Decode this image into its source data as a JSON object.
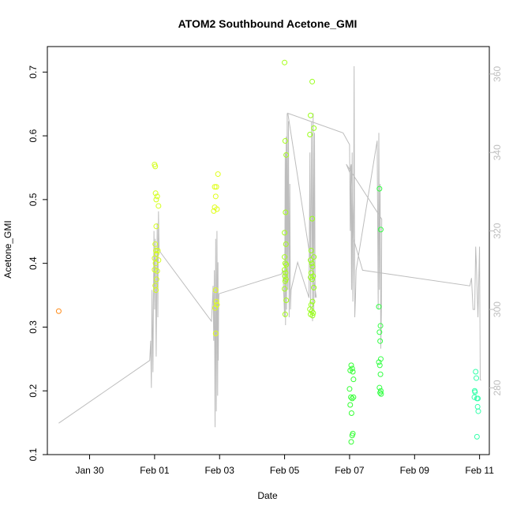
{
  "chart_data": {
    "type": "scatter",
    "title": "ATOM2 Southbound Acetone_GMI",
    "xlabel": "Date",
    "ylabel": "Acetone_GMI",
    "x_axis": {
      "range_days_from_jan29": [
        -0.3,
        13.3
      ],
      "ticks": [
        {
          "label": "Jan 30",
          "day": 1
        },
        {
          "label": "Feb 01",
          "day": 3
        },
        {
          "label": "Feb 03",
          "day": 5
        },
        {
          "label": "Feb 05",
          "day": 7
        },
        {
          "label": "Feb 07",
          "day": 9
        },
        {
          "label": "Feb 09",
          "day": 11
        },
        {
          "label": "Feb 11",
          "day": 13
        }
      ]
    },
    "ylim": [
      0.1,
      0.74
    ],
    "yticks": [
      "0.1",
      "0.2",
      "0.3",
      "0.4",
      "0.5",
      "0.6",
      "0.7"
    ],
    "y2lim": [
      263,
      367
    ],
    "y2ticks": [
      "280",
      "300",
      "320",
      "340",
      "360"
    ],
    "grid": false,
    "secondary_color": "#bdbdbd",
    "series": [
      {
        "marker": "open-circle",
        "points": [
          {
            "x": 0.05,
            "y": 0.325,
            "color": "#ff8c1a"
          },
          {
            "x": 3.0,
            "y": 0.555,
            "color": "#d4ff1a"
          },
          {
            "x": 3.02,
            "y": 0.552,
            "color": "#d4ff1a"
          },
          {
            "x": 3.03,
            "y": 0.51,
            "color": "#d4ff1a"
          },
          {
            "x": 3.05,
            "y": 0.5,
            "color": "#d4ff1a"
          },
          {
            "x": 3.08,
            "y": 0.505,
            "color": "#d4ff1a"
          },
          {
            "x": 3.12,
            "y": 0.49,
            "color": "#d4ff1a"
          },
          {
            "x": 3.05,
            "y": 0.458,
            "color": "#d4ff1a"
          },
          {
            "x": 3.02,
            "y": 0.43,
            "color": "#d4ff1a"
          },
          {
            "x": 3.04,
            "y": 0.42,
            "color": "#d4ff1a"
          },
          {
            "x": 3.1,
            "y": 0.42,
            "color": "#d4ff1a"
          },
          {
            "x": 3.06,
            "y": 0.415,
            "color": "#d4ff1a"
          },
          {
            "x": 3.0,
            "y": 0.408,
            "color": "#d4ff1a"
          },
          {
            "x": 3.12,
            "y": 0.405,
            "color": "#d4ff1a"
          },
          {
            "x": 3.03,
            "y": 0.4,
            "color": "#d4ff1a"
          },
          {
            "x": 3.0,
            "y": 0.39,
            "color": "#d4ff1a"
          },
          {
            "x": 3.08,
            "y": 0.388,
            "color": "#d4ff1a"
          },
          {
            "x": 3.06,
            "y": 0.375,
            "color": "#d4ff1a"
          },
          {
            "x": 3.02,
            "y": 0.365,
            "color": "#d4ff1a"
          },
          {
            "x": 3.04,
            "y": 0.358,
            "color": "#d4ff1a"
          },
          {
            "x": 4.85,
            "y": 0.52,
            "color": "#e0ff1a"
          },
          {
            "x": 4.9,
            "y": 0.52,
            "color": "#e0ff1a"
          },
          {
            "x": 4.95,
            "y": 0.54,
            "color": "#e0ff1a"
          },
          {
            "x": 4.88,
            "y": 0.505,
            "color": "#e0ff1a"
          },
          {
            "x": 4.85,
            "y": 0.488,
            "color": "#e0ff1a"
          },
          {
            "x": 4.92,
            "y": 0.485,
            "color": "#e0ff1a"
          },
          {
            "x": 4.82,
            "y": 0.482,
            "color": "#e0ff1a"
          },
          {
            "x": 4.88,
            "y": 0.358,
            "color": "#e0ff1a"
          },
          {
            "x": 4.9,
            "y": 0.34,
            "color": "#e0ff1a"
          },
          {
            "x": 4.92,
            "y": 0.335,
            "color": "#e0ff1a"
          },
          {
            "x": 4.86,
            "y": 0.33,
            "color": "#e0ff1a"
          },
          {
            "x": 4.88,
            "y": 0.29,
            "color": "#e0ff1a"
          },
          {
            "x": 7.0,
            "y": 0.715,
            "color": "#a6ff1a"
          },
          {
            "x": 7.02,
            "y": 0.592,
            "color": "#a6ff1a"
          },
          {
            "x": 7.05,
            "y": 0.57,
            "color": "#a6ff1a"
          },
          {
            "x": 7.0,
            "y": 0.448,
            "color": "#a6ff1a"
          },
          {
            "x": 7.03,
            "y": 0.48,
            "color": "#a6ff1a"
          },
          {
            "x": 7.04,
            "y": 0.43,
            "color": "#a6ff1a"
          },
          {
            "x": 7.0,
            "y": 0.41,
            "color": "#a6ff1a"
          },
          {
            "x": 7.02,
            "y": 0.4,
            "color": "#a6ff1a"
          },
          {
            "x": 7.05,
            "y": 0.398,
            "color": "#a6ff1a"
          },
          {
            "x": 7.0,
            "y": 0.39,
            "color": "#a6ff1a"
          },
          {
            "x": 7.03,
            "y": 0.385,
            "color": "#a6ff1a"
          },
          {
            "x": 7.01,
            "y": 0.38,
            "color": "#a6ff1a"
          },
          {
            "x": 7.04,
            "y": 0.375,
            "color": "#a6ff1a"
          },
          {
            "x": 7.02,
            "y": 0.372,
            "color": "#a6ff1a"
          },
          {
            "x": 7.0,
            "y": 0.36,
            "color": "#a6ff1a"
          },
          {
            "x": 7.05,
            "y": 0.342,
            "color": "#a6ff1a"
          },
          {
            "x": 7.02,
            "y": 0.32,
            "color": "#a6ff1a"
          },
          {
            "x": 7.85,
            "y": 0.685,
            "color": "#99ff1a"
          },
          {
            "x": 7.8,
            "y": 0.632,
            "color": "#99ff1a"
          },
          {
            "x": 7.9,
            "y": 0.612,
            "color": "#99ff1a"
          },
          {
            "x": 7.78,
            "y": 0.602,
            "color": "#99ff1a"
          },
          {
            "x": 7.85,
            "y": 0.47,
            "color": "#99ff1a"
          },
          {
            "x": 7.82,
            "y": 0.42,
            "color": "#99ff1a"
          },
          {
            "x": 7.9,
            "y": 0.41,
            "color": "#99ff1a"
          },
          {
            "x": 7.8,
            "y": 0.405,
            "color": "#99ff1a"
          },
          {
            "x": 7.84,
            "y": 0.4,
            "color": "#99ff1a"
          },
          {
            "x": 7.86,
            "y": 0.395,
            "color": "#99ff1a"
          },
          {
            "x": 7.82,
            "y": 0.385,
            "color": "#99ff1a"
          },
          {
            "x": 7.88,
            "y": 0.38,
            "color": "#99ff1a"
          },
          {
            "x": 7.8,
            "y": 0.378,
            "color": "#99ff1a"
          },
          {
            "x": 7.85,
            "y": 0.375,
            "color": "#99ff1a"
          },
          {
            "x": 7.9,
            "y": 0.362,
            "color": "#99ff1a"
          },
          {
            "x": 7.86,
            "y": 0.34,
            "color": "#99ff1a"
          },
          {
            "x": 7.82,
            "y": 0.335,
            "color": "#99ff1a"
          },
          {
            "x": 7.78,
            "y": 0.328,
            "color": "#99ff1a"
          },
          {
            "x": 7.84,
            "y": 0.325,
            "color": "#99ff1a"
          },
          {
            "x": 7.88,
            "y": 0.322,
            "color": "#99ff1a"
          },
          {
            "x": 7.8,
            "y": 0.32,
            "color": "#99ff1a"
          },
          {
            "x": 7.86,
            "y": 0.318,
            "color": "#99ff1a"
          },
          {
            "x": 9.05,
            "y": 0.24,
            "color": "#33ff33"
          },
          {
            "x": 9.08,
            "y": 0.235,
            "color": "#33ff33"
          },
          {
            "x": 9.02,
            "y": 0.232,
            "color": "#33ff33"
          },
          {
            "x": 9.1,
            "y": 0.23,
            "color": "#33ff33"
          },
          {
            "x": 9.12,
            "y": 0.218,
            "color": "#33ff33"
          },
          {
            "x": 9.0,
            "y": 0.203,
            "color": "#33ff33"
          },
          {
            "x": 9.04,
            "y": 0.19,
            "color": "#33ff33"
          },
          {
            "x": 9.08,
            "y": 0.188,
            "color": "#33ff33"
          },
          {
            "x": 9.12,
            "y": 0.19,
            "color": "#33ff33"
          },
          {
            "x": 9.02,
            "y": 0.178,
            "color": "#33ff33"
          },
          {
            "x": 9.06,
            "y": 0.165,
            "color": "#33ff33"
          },
          {
            "x": 9.1,
            "y": 0.133,
            "color": "#33ff33"
          },
          {
            "x": 9.08,
            "y": 0.13,
            "color": "#33ff33"
          },
          {
            "x": 9.05,
            "y": 0.12,
            "color": "#33ff33"
          },
          {
            "x": 9.92,
            "y": 0.517,
            "color": "#33ff44"
          },
          {
            "x": 9.96,
            "y": 0.453,
            "color": "#33ff44"
          },
          {
            "x": 9.9,
            "y": 0.332,
            "color": "#33ff44"
          },
          {
            "x": 9.95,
            "y": 0.302,
            "color": "#33ff44"
          },
          {
            "x": 9.92,
            "y": 0.292,
            "color": "#33ff44"
          },
          {
            "x": 9.94,
            "y": 0.278,
            "color": "#33ff44"
          },
          {
            "x": 9.96,
            "y": 0.25,
            "color": "#33ff44"
          },
          {
            "x": 9.9,
            "y": 0.245,
            "color": "#33ff44"
          },
          {
            "x": 9.93,
            "y": 0.24,
            "color": "#33ff44"
          },
          {
            "x": 9.95,
            "y": 0.226,
            "color": "#33ff44"
          },
          {
            "x": 9.92,
            "y": 0.205,
            "color": "#33ff44"
          },
          {
            "x": 9.96,
            "y": 0.2,
            "color": "#33ff44"
          },
          {
            "x": 9.94,
            "y": 0.197,
            "color": "#33ff44"
          },
          {
            "x": 9.97,
            "y": 0.195,
            "color": "#33ff44"
          },
          {
            "x": 12.85,
            "y": 0.2,
            "color": "#33ffaa"
          },
          {
            "x": 12.88,
            "y": 0.23,
            "color": "#33ffaa"
          },
          {
            "x": 12.9,
            "y": 0.22,
            "color": "#33ffaa"
          },
          {
            "x": 12.86,
            "y": 0.198,
            "color": "#33ffaa"
          },
          {
            "x": 12.84,
            "y": 0.19,
            "color": "#33ffaa"
          },
          {
            "x": 12.92,
            "y": 0.188,
            "color": "#33ffaa"
          },
          {
            "x": 12.95,
            "y": 0.188,
            "color": "#33ffaa"
          },
          {
            "x": 12.94,
            "y": 0.175,
            "color": "#33ffaa"
          },
          {
            "x": 12.96,
            "y": 0.168,
            "color": "#33ffaa"
          },
          {
            "x": 12.92,
            "y": 0.128,
            "color": "#33ffaa"
          }
        ]
      },
      {
        "axis": "right",
        "type": "line",
        "color": "#bdbdbd",
        "points": [
          [
            0.05,
            271
          ],
          [
            2.85,
            287
          ],
          [
            2.88,
            292
          ],
          [
            2.9,
            280
          ],
          [
            2.92,
            305
          ],
          [
            2.95,
            284
          ],
          [
            2.98,
            320
          ],
          [
            3.0,
            300
          ],
          [
            3.02,
            318
          ],
          [
            3.05,
            288
          ],
          [
            3.08,
            322
          ],
          [
            3.1,
            298
          ],
          [
            3.12,
            325
          ],
          [
            3.14,
            315
          ],
          [
            4.75,
            297
          ],
          [
            4.78,
            302
          ],
          [
            4.8,
            306
          ],
          [
            4.82,
            292
          ],
          [
            4.84,
            310
          ],
          [
            4.86,
            270
          ],
          [
            4.88,
            318
          ],
          [
            4.9,
            274
          ],
          [
            4.92,
            320
          ],
          [
            4.94,
            278
          ],
          [
            4.95,
            312
          ],
          [
            4.96,
            287
          ],
          [
            4.97,
            300
          ],
          [
            4.98,
            304
          ],
          [
            6.9,
            309
          ],
          [
            6.95,
            310
          ],
          [
            7.0,
            298
          ],
          [
            7.02,
            340
          ],
          [
            7.03,
            296
          ],
          [
            7.05,
            344
          ],
          [
            7.06,
            300
          ],
          [
            7.08,
            350
          ],
          [
            7.1,
            305
          ],
          [
            7.12,
            348
          ],
          [
            7.14,
            298
          ],
          [
            7.16,
            332
          ],
          [
            7.18,
            300
          ],
          [
            7.2,
            305
          ],
          [
            7.4,
            312
          ],
          [
            7.75,
            303
          ],
          [
            7.78,
            340
          ],
          [
            7.8,
            300
          ],
          [
            7.83,
            348
          ],
          [
            7.86,
            297
          ],
          [
            7.88,
            350
          ],
          [
            7.9,
            300
          ],
          [
            7.92,
            345
          ],
          [
            7.94,
            303
          ],
          [
            7.96,
            304
          ],
          [
            7.98,
            303
          ],
          [
            7.1,
            350
          ],
          [
            8.8,
            345
          ],
          [
            9.0,
            342
          ],
          [
            9.02,
            320
          ],
          [
            9.04,
            336
          ],
          [
            9.06,
            305
          ],
          [
            9.08,
            340
          ],
          [
            9.1,
            302
          ],
          [
            9.12,
            312
          ],
          [
            9.14,
            362
          ],
          [
            9.16,
            298
          ],
          [
            9.18,
            303
          ],
          [
            9.2,
            310
          ],
          [
            9.85,
            343
          ],
          [
            9.88,
            300
          ],
          [
            9.9,
            345
          ],
          [
            9.92,
            305
          ],
          [
            9.94,
            332
          ],
          [
            9.96,
            290
          ],
          [
            9.98,
            300
          ],
          [
            9.99,
            323
          ],
          [
            8.9,
            337
          ],
          [
            9.0,
            335
          ],
          [
            9.05,
            337
          ],
          [
            9.08,
            330
          ],
          [
            9.12,
            318
          ],
          [
            9.4,
            310
          ],
          [
            12.7,
            306
          ],
          [
            12.75,
            308
          ],
          [
            12.8,
            300
          ],
          [
            12.85,
            300
          ],
          [
            12.88,
            316
          ],
          [
            12.9,
            312
          ],
          [
            12.95,
            298
          ],
          [
            13.0,
            316
          ],
          [
            13.02,
            282
          ],
          [
            13.05,
            282
          ]
        ]
      }
    ]
  }
}
